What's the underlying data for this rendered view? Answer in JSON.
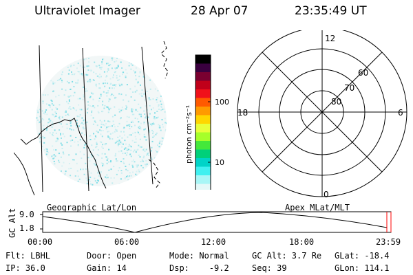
{
  "header": {
    "title": "Ultraviolet Imager",
    "date": "28 Apr 07",
    "time": "23:35:49 UT"
  },
  "earth_panel": {
    "label": "Geographic Lat/Lon"
  },
  "colorbar": {
    "unit_label": "photon cm⁻²s⁻¹",
    "ticks": [
      "100",
      "10"
    ],
    "colors": [
      "#000000",
      "#3a003f",
      "#7a0030",
      "#c0001a",
      "#f0101a",
      "#ff5a00",
      "#ff9a00",
      "#ffd600",
      "#e8ff3a",
      "#a6ff2a",
      "#44e83a",
      "#00d07a",
      "#00d4c8",
      "#40f0f0",
      "#a8f6f6",
      "#e4f8f8"
    ]
  },
  "polar_panel": {
    "label": "Apex MLat/MLT",
    "mlt_labels": {
      "top": "12",
      "bottom": "0",
      "left": "18",
      "right": "6"
    },
    "lat_labels": [
      "80",
      "70",
      "60"
    ]
  },
  "timeline": {
    "ylabel": "GC Alt",
    "yticks": [
      "9.0",
      "1.8"
    ],
    "xticks": [
      "00:00",
      "06:00",
      "12:00",
      "18:00",
      "23:59"
    ],
    "marker_color": "#ff0000"
  },
  "info": {
    "row1": {
      "filter": "Flt: LBHL",
      "door": "Door: Open",
      "mode": "Mode: Normal",
      "gc_alt": "GC Alt: 3.7 Re",
      "glat": "GLat: -18.4"
    },
    "row2": {
      "ip": "IP: 36.0",
      "gain": "Gain: 14",
      "dsp": "Dsp:    -9.2",
      "seq": "Seq: 39",
      "glon": "GLon: 114.1"
    }
  }
}
